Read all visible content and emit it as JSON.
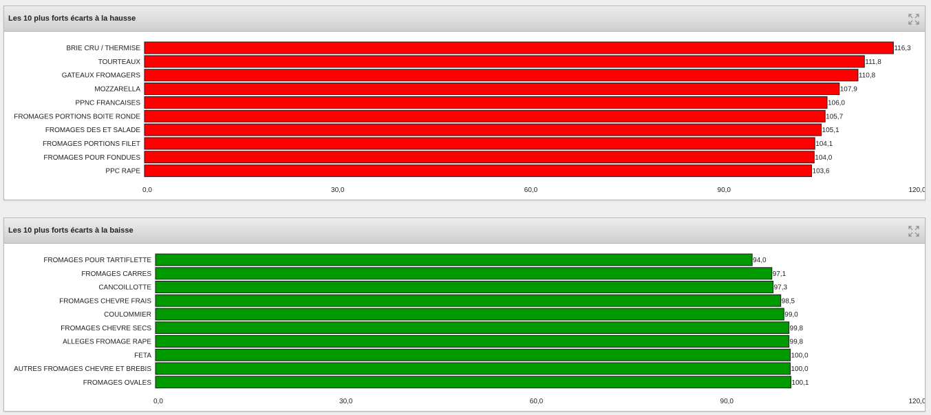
{
  "panels": [
    {
      "title": "Les 10 plus forts écarts à la hausse",
      "expand_icon": "expand-icon",
      "bar_color": "#ff0000"
    },
    {
      "title": "Les 10 plus forts écarts à la baisse",
      "expand_icon": "expand-icon",
      "bar_color": "#009900"
    }
  ],
  "chart_data": [
    {
      "type": "bar",
      "orientation": "horizontal",
      "title": "Les 10 plus forts écarts à la hausse",
      "categories": [
        "BRIE CRU / THERMISE",
        "TOURTEAUX",
        "GATEAUX FROMAGERS",
        "MOZZARELLA",
        "PPNC FRANCAISES",
        "FROMAGES PORTIONS BOITE RONDE",
        "FROMAGES DES ET SALADE",
        "FROMAGES PORTIONS FILET",
        "FROMAGES POUR FONDUES",
        "PPC RAPE"
      ],
      "values": [
        116.3,
        111.8,
        110.8,
        107.9,
        106.0,
        105.7,
        105.1,
        104.1,
        104.0,
        103.6
      ],
      "value_labels": [
        "116,3",
        "111,8",
        "110,8",
        "107,9",
        "106,0",
        "105,7",
        "105,1",
        "104,1",
        "104,0",
        "103,6"
      ],
      "xlim": [
        0,
        120
      ],
      "ticks": [
        0,
        30,
        60,
        90,
        120
      ],
      "tick_labels": [
        "0,0",
        "30,0",
        "60,0",
        "90,0",
        "120,0"
      ],
      "color": "#ff0000",
      "xlabel": "",
      "ylabel": "",
      "grid": false,
      "legend": false
    },
    {
      "type": "bar",
      "orientation": "horizontal",
      "title": "Les 10 plus forts écarts à la baisse",
      "categories": [
        "FROMAGES POUR TARTIFLETTE",
        "FROMAGES CARRES",
        "CANCOILLOTTE",
        "FROMAGES CHEVRE FRAIS",
        "COULOMMIER",
        "FROMAGES CHEVRE SECS",
        "ALLEGES FROMAGE RAPE",
        "FETA",
        "AUTRES FROMAGES CHEVRE ET BREBIS",
        "FROMAGES OVALES"
      ],
      "values": [
        94.0,
        97.1,
        97.3,
        98.5,
        99.0,
        99.8,
        99.8,
        100.0,
        100.0,
        100.1
      ],
      "value_labels": [
        "94,0",
        "97,1",
        "97,3",
        "98,5",
        "99,0",
        "99,8",
        "99,8",
        "100,0",
        "100,0",
        "100,1"
      ],
      "xlim": [
        0,
        120
      ],
      "ticks": [
        0,
        30,
        60,
        90,
        120
      ],
      "tick_labels": [
        "0,0",
        "30,0",
        "60,0",
        "90,0",
        "120,0"
      ],
      "color": "#009900",
      "xlabel": "",
      "ylabel": "",
      "grid": false,
      "legend": false
    }
  ]
}
